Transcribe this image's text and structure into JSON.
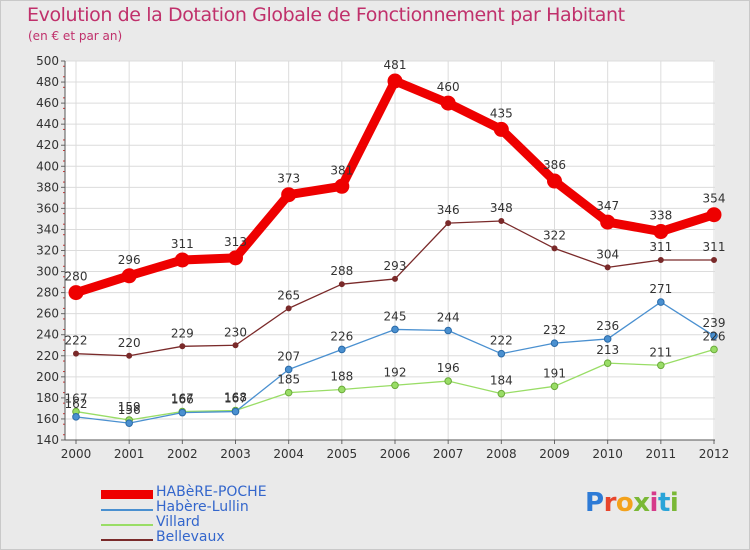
{
  "header": {
    "title": "Evolution de la Dotation Globale de Fonctionnement par Habitant",
    "subtitle": "(en € et par an)"
  },
  "chart_data": {
    "type": "line",
    "title": "Evolution de la Dotation Globale de Fonctionnement par Habitant",
    "subtitle": "(en € et par an)",
    "xlabel": "",
    "ylabel": "",
    "ylim": [
      140,
      500
    ],
    "ytick_step": 20,
    "grid": true,
    "categories": [
      "2000",
      "2001",
      "2002",
      "2003",
      "2004",
      "2005",
      "2006",
      "2007",
      "2008",
      "2009",
      "2010",
      "2011",
      "2012"
    ],
    "series": [
      {
        "name": "HABèRE-POCHE",
        "color": "#ee0000",
        "values": [
          280,
          296,
          311,
          313,
          373,
          381,
          481,
          460,
          435,
          386,
          347,
          338,
          354
        ]
      },
      {
        "name": "Habère-Lullin",
        "color": "#4a90d0",
        "values": [
          162,
          156,
          166,
          167,
          207,
          226,
          245,
          244,
          222,
          232,
          236,
          271,
          239
        ]
      },
      {
        "name": "Villard",
        "color": "#99dd66",
        "values": [
          167,
          159,
          167,
          168,
          185,
          188,
          192,
          196,
          184,
          191,
          213,
          211,
          226
        ]
      },
      {
        "name": "Bellevaux",
        "color": "#7a2a2a",
        "values": [
          222,
          220,
          229,
          230,
          265,
          288,
          293,
          346,
          348,
          322,
          304,
          311,
          311
        ]
      }
    ]
  },
  "legend": {
    "items": [
      {
        "label": "HABèRE-POCHE",
        "color": "#ee0000"
      },
      {
        "label": "Habère-Lullin",
        "color": "#4a90d0"
      },
      {
        "label": "Villard",
        "color": "#99dd66"
      },
      {
        "label": "Bellevaux",
        "color": "#7a2a2a"
      }
    ]
  },
  "logo": {
    "letters": [
      "P",
      "r",
      "o",
      "x",
      "i",
      "t",
      "i"
    ],
    "colors": [
      "#2e7bd6",
      "#e8452c",
      "#f3a21c",
      "#7ab836",
      "#d63b8a",
      "#2aa4d8",
      "#7ab836"
    ]
  }
}
